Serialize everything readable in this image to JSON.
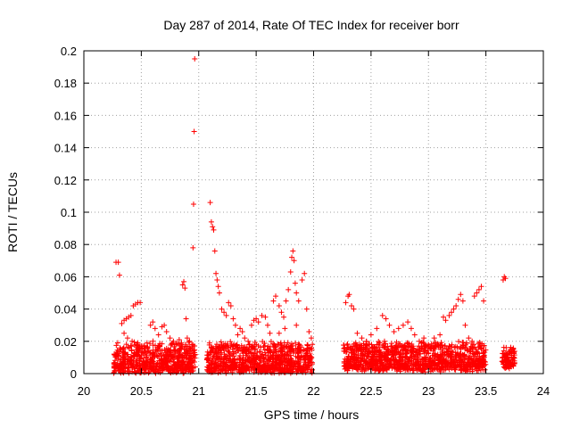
{
  "chart_data": {
    "type": "scatter",
    "title": "Day 287 of 2014, Rate Of TEC Index for receiver borr",
    "xlabel": "GPS time / hours",
    "ylabel": "ROTI / TECUs",
    "xlim": [
      20,
      24
    ],
    "ylim": [
      0,
      0.2
    ],
    "xticks": [
      20,
      20.5,
      21,
      21.5,
      22,
      22.5,
      23,
      23.5,
      24
    ],
    "xtick_labels": [
      "20",
      "20.5",
      "21",
      "21.5",
      "22",
      "22.5",
      "23",
      "23.5",
      "24"
    ],
    "yticks": [
      0,
      0.02,
      0.04,
      0.06,
      0.08,
      0.1,
      0.12,
      0.14,
      0.16,
      0.18,
      0.2
    ],
    "ytick_labels": [
      "0",
      "0.02",
      "0.04",
      "0.06",
      "0.08",
      "0.1",
      "0.12",
      "0.14",
      "0.16",
      "0.18",
      "0.2"
    ],
    "grid": true,
    "marker": "+",
    "marker_color": "#ff0000",
    "series": [
      {
        "name": "ROTI",
        "points": [
          [
            20.28,
            0.069
          ],
          [
            20.3,
            0.069
          ],
          [
            20.31,
            0.061
          ],
          [
            20.33,
            0.031
          ],
          [
            20.35,
            0.033
          ],
          [
            20.37,
            0.034
          ],
          [
            20.39,
            0.035
          ],
          [
            20.41,
            0.036
          ],
          [
            20.43,
            0.042
          ],
          [
            20.45,
            0.043
          ],
          [
            20.47,
            0.044
          ],
          [
            20.49,
            0.044
          ],
          [
            20.35,
            0.025
          ],
          [
            20.38,
            0.022
          ],
          [
            20.42,
            0.02
          ],
          [
            20.46,
            0.018
          ],
          [
            20.5,
            0.017
          ],
          [
            20.55,
            0.019
          ],
          [
            20.58,
            0.03
          ],
          [
            20.6,
            0.032
          ],
          [
            20.62,
            0.028
          ],
          [
            20.65,
            0.024
          ],
          [
            20.68,
            0.029
          ],
          [
            20.7,
            0.03
          ],
          [
            20.72,
            0.026
          ],
          [
            20.75,
            0.022
          ],
          [
            20.78,
            0.02
          ],
          [
            20.8,
            0.018
          ],
          [
            20.83,
            0.021
          ],
          [
            20.85,
            0.019
          ],
          [
            20.86,
            0.055
          ],
          [
            20.87,
            0.057
          ],
          [
            20.88,
            0.053
          ],
          [
            20.89,
            0.034
          ],
          [
            20.9,
            0.022
          ],
          [
            20.92,
            0.02
          ],
          [
            20.94,
            0.018
          ],
          [
            20.95,
            0.078
          ],
          [
            20.955,
            0.105
          ],
          [
            20.96,
            0.15
          ],
          [
            20.965,
            0.195
          ],
          [
            21.1,
            0.106
          ],
          [
            21.11,
            0.094
          ],
          [
            21.12,
            0.091
          ],
          [
            21.13,
            0.089
          ],
          [
            21.14,
            0.076
          ],
          [
            21.15,
            0.062
          ],
          [
            21.16,
            0.058
          ],
          [
            21.17,
            0.054
          ],
          [
            21.18,
            0.05
          ],
          [
            21.2,
            0.04
          ],
          [
            21.22,
            0.038
          ],
          [
            21.24,
            0.036
          ],
          [
            21.26,
            0.044
          ],
          [
            21.28,
            0.042
          ],
          [
            21.3,
            0.034
          ],
          [
            21.32,
            0.03
          ],
          [
            21.34,
            0.024
          ],
          [
            21.36,
            0.028
          ],
          [
            21.38,
            0.026
          ],
          [
            21.4,
            0.022
          ],
          [
            21.43,
            0.02
          ],
          [
            21.46,
            0.03
          ],
          [
            21.48,
            0.033
          ],
          [
            21.5,
            0.034
          ],
          [
            21.52,
            0.032
          ],
          [
            21.55,
            0.036
          ],
          [
            21.58,
            0.035
          ],
          [
            21.6,
            0.03
          ],
          [
            21.62,
            0.025
          ],
          [
            21.65,
            0.045
          ],
          [
            21.67,
            0.048
          ],
          [
            21.7,
            0.042
          ],
          [
            21.72,
            0.038
          ],
          [
            21.74,
            0.035
          ],
          [
            21.76,
            0.045
          ],
          [
            21.78,
            0.052
          ],
          [
            21.8,
            0.063
          ],
          [
            21.81,
            0.072
          ],
          [
            21.82,
            0.076
          ],
          [
            21.83,
            0.07
          ],
          [
            21.84,
            0.056
          ],
          [
            21.85,
            0.05
          ],
          [
            21.87,
            0.045
          ],
          [
            21.9,
            0.058
          ],
          [
            21.92,
            0.062
          ],
          [
            21.94,
            0.04
          ],
          [
            21.96,
            0.026
          ],
          [
            21.98,
            0.022
          ],
          [
            21.7,
            0.025
          ],
          [
            21.75,
            0.028
          ],
          [
            21.85,
            0.03
          ],
          [
            22.28,
            0.044
          ],
          [
            22.3,
            0.048
          ],
          [
            22.31,
            0.049
          ],
          [
            22.33,
            0.042
          ],
          [
            22.35,
            0.04
          ],
          [
            22.38,
            0.025
          ],
          [
            22.42,
            0.022
          ],
          [
            22.46,
            0.02
          ],
          [
            22.5,
            0.024
          ],
          [
            22.55,
            0.028
          ],
          [
            22.6,
            0.036
          ],
          [
            22.63,
            0.034
          ],
          [
            22.66,
            0.03
          ],
          [
            22.7,
            0.026
          ],
          [
            22.74,
            0.028
          ],
          [
            22.78,
            0.03
          ],
          [
            22.82,
            0.032
          ],
          [
            22.85,
            0.028
          ],
          [
            22.88,
            0.024
          ],
          [
            22.92,
            0.02
          ],
          [
            22.96,
            0.022
          ],
          [
            23.0,
            0.018
          ],
          [
            23.05,
            0.022
          ],
          [
            23.1,
            0.024
          ],
          [
            23.13,
            0.035
          ],
          [
            23.15,
            0.033
          ],
          [
            23.18,
            0.036
          ],
          [
            23.2,
            0.038
          ],
          [
            23.22,
            0.04
          ],
          [
            23.24,
            0.042
          ],
          [
            23.26,
            0.046
          ],
          [
            23.28,
            0.049
          ],
          [
            23.3,
            0.045
          ],
          [
            23.32,
            0.03
          ],
          [
            23.35,
            0.022
          ],
          [
            23.38,
            0.02
          ],
          [
            23.4,
            0.048
          ],
          [
            23.42,
            0.05
          ],
          [
            23.44,
            0.052
          ],
          [
            23.46,
            0.054
          ],
          [
            23.48,
            0.045
          ],
          [
            23.65,
            0.058
          ],
          [
            23.66,
            0.06
          ],
          [
            23.67,
            0.059
          ]
        ]
      }
    ],
    "dense_bands": [
      {
        "x_start": 20.26,
        "x_end": 20.97,
        "y_min": 0.0,
        "y_max": 0.022
      },
      {
        "x_start": 21.07,
        "x_end": 21.99,
        "y_min": 0.0,
        "y_max": 0.022
      },
      {
        "x_start": 22.26,
        "x_end": 23.5,
        "y_min": 0.001,
        "y_max": 0.022
      },
      {
        "x_start": 23.64,
        "x_end": 23.75,
        "y_min": 0.003,
        "y_max": 0.017
      }
    ]
  }
}
